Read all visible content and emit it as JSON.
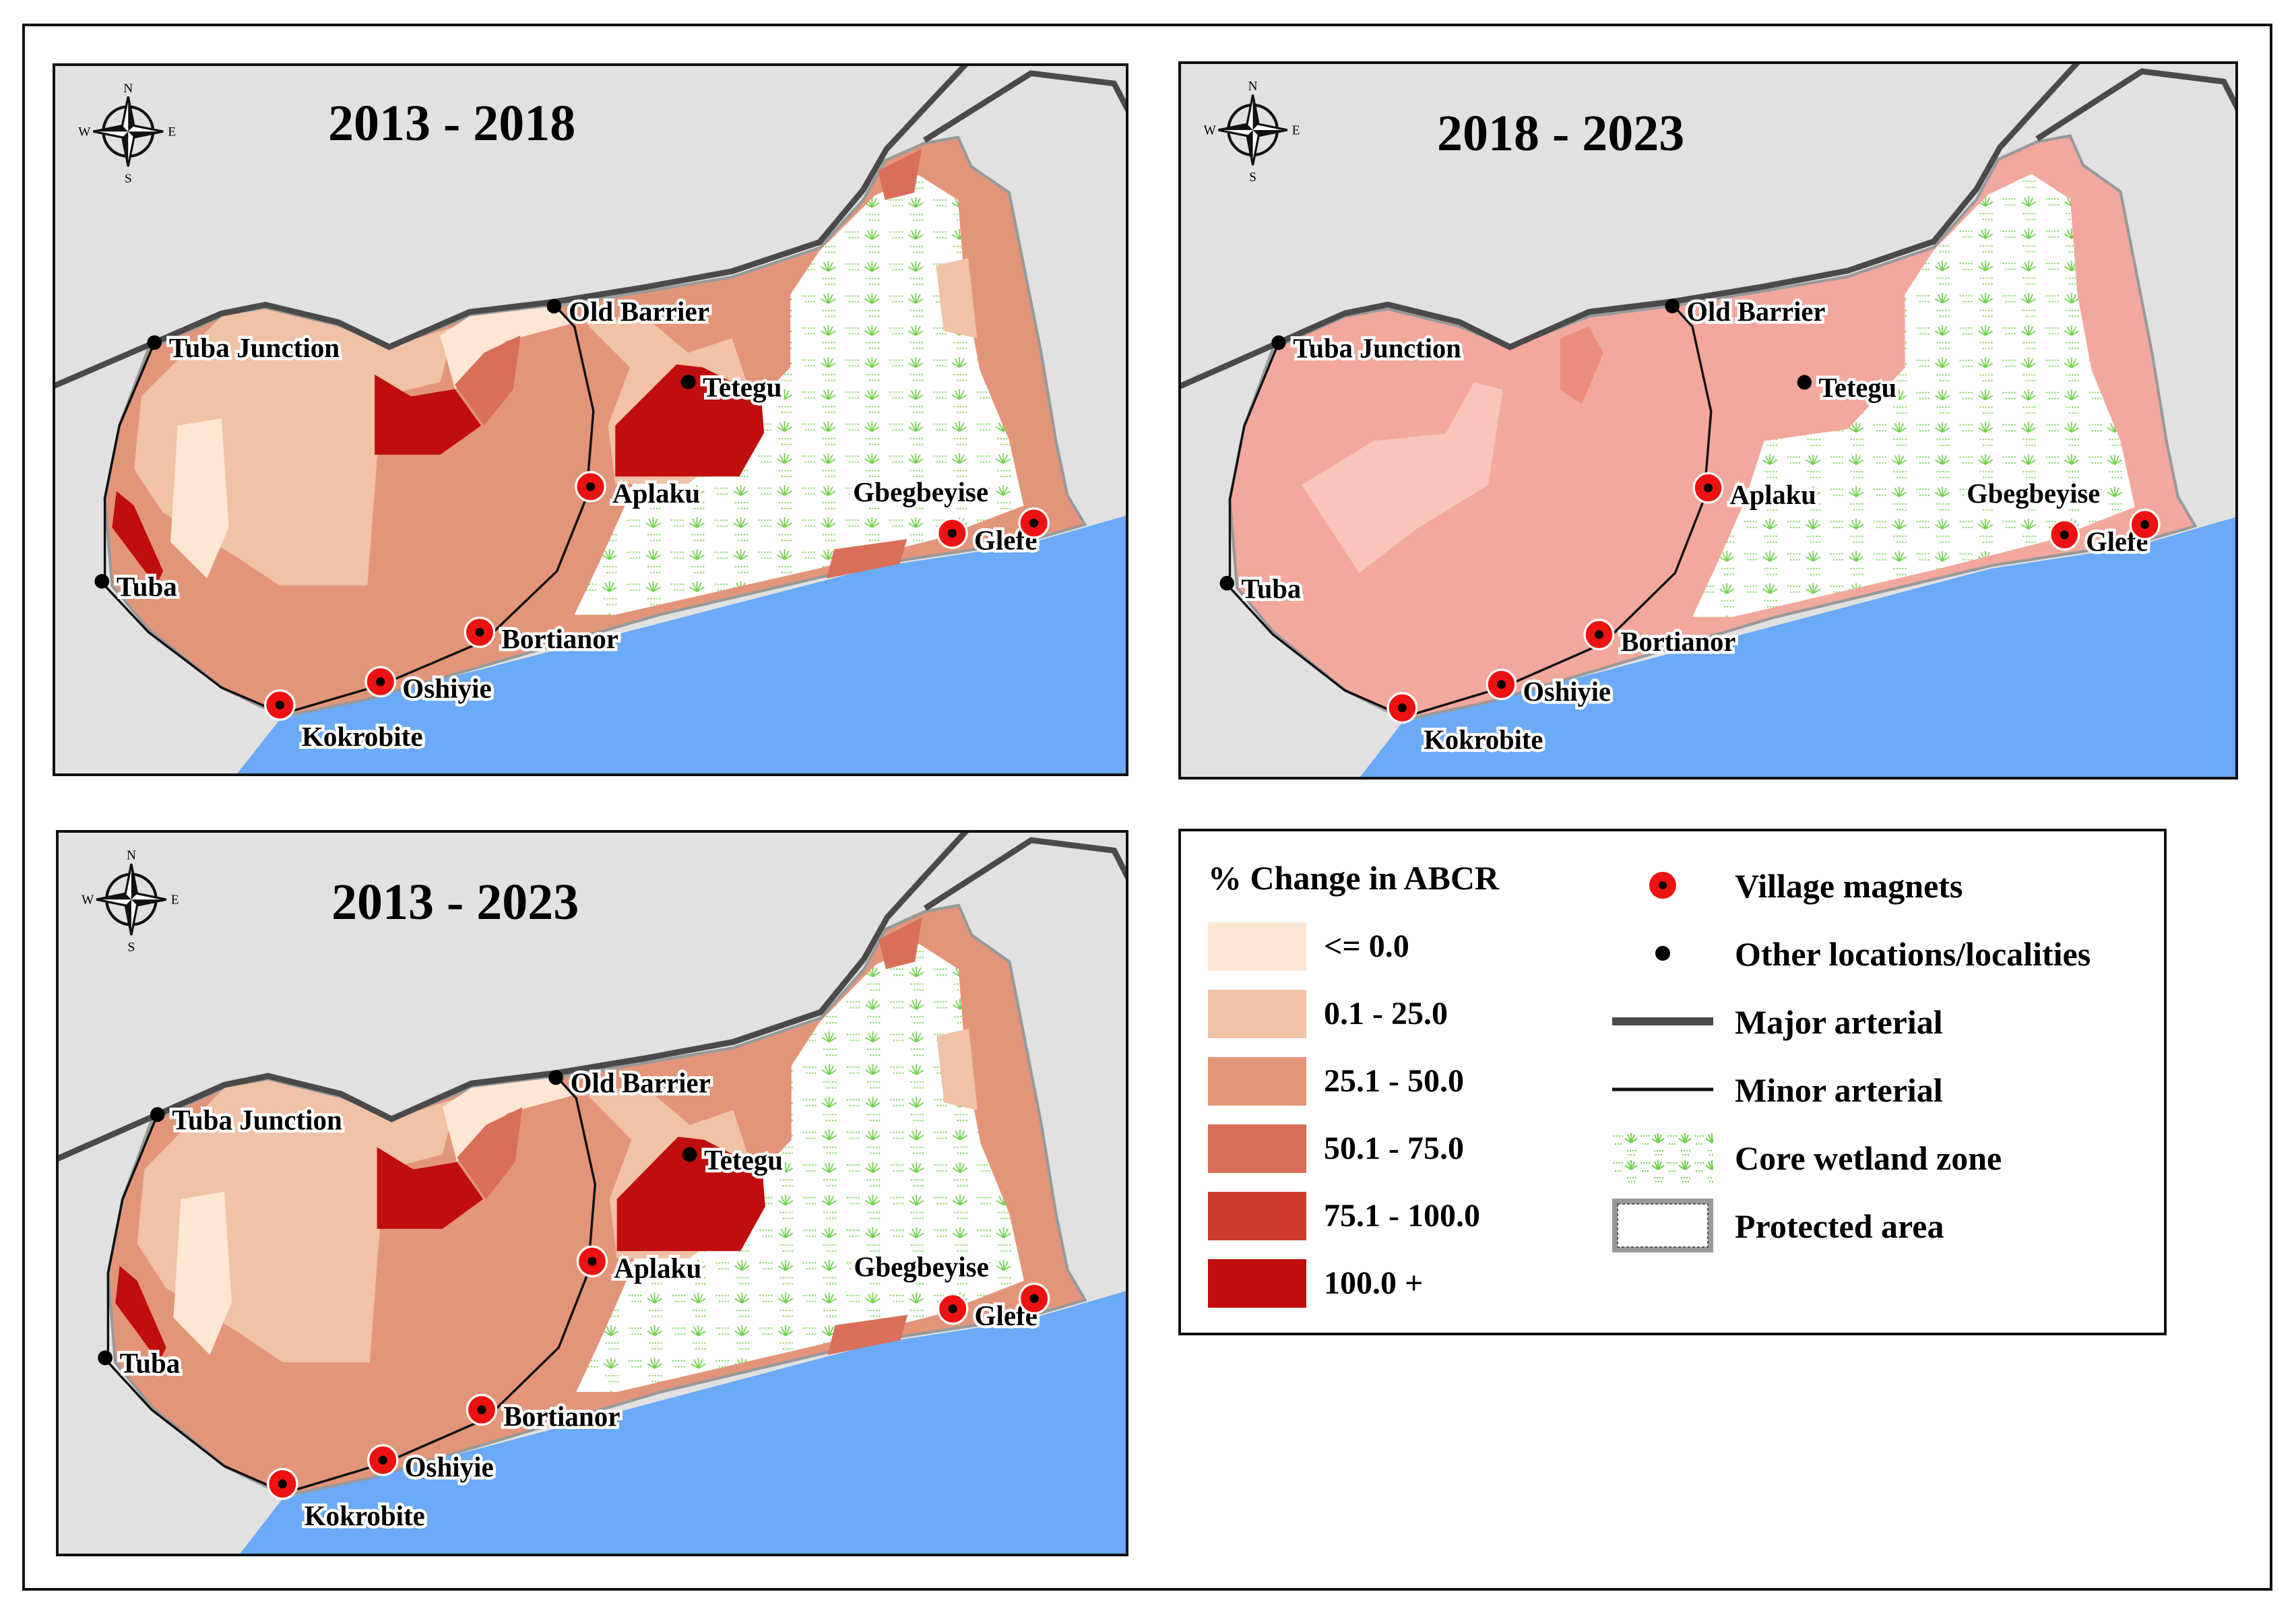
{
  "figure": {
    "compass": {
      "n": "N",
      "s": "S",
      "e": "E",
      "w": "W"
    },
    "panels": [
      {
        "id": "p1",
        "title": "2013 - 2018",
        "variant": "a"
      },
      {
        "id": "p2",
        "title": "2018 - 2023",
        "variant": "b"
      },
      {
        "id": "p3",
        "title": "2013 - 2023",
        "variant": "c"
      }
    ],
    "places": {
      "localities": [
        "Tuba Junction",
        "Old Barrier",
        "Tetegu",
        "Tuba"
      ],
      "village_magnets": [
        "Aplaku",
        "Bortianor",
        "Oshiyie",
        "Kokrobite",
        "Glefe"
      ],
      "unmarked_labels": [
        "Gbegbeyise"
      ]
    },
    "colors": {
      "background_land": "#e1e1e1",
      "sea": "#6aaaf7",
      "wetland_pattern": "#6fd24a",
      "village_magnet": "#ee1111",
      "major_arterial": "#4a4a4a",
      "minor_arterial": "#111111",
      "panel_2018_2023_fill": "#f3a89d"
    }
  },
  "legend": {
    "title": "% Change in ABCR",
    "classes": [
      {
        "label": "<= 0.0",
        "color": "#fde6d3"
      },
      {
        "label": "0.1 - 25.0",
        "color": "#f0c2a6"
      },
      {
        "label": "25.1 - 50.0",
        "color": "#e3957a"
      },
      {
        "label": "50.1 - 75.0",
        "color": "#d96f58"
      },
      {
        "label": "75.1 - 100.0",
        "color": "#cc3a2c"
      },
      {
        "label": "100.0 +",
        "color": "#c00d0d"
      }
    ],
    "symbols": [
      {
        "label": "Village magnets",
        "icon": "village-magnet-icon"
      },
      {
        "label": "Other locations/localities",
        "icon": "locality-dot-icon"
      },
      {
        "label": "Major arterial",
        "icon": "major-arterial-line-icon"
      },
      {
        "label": "Minor arterial",
        "icon": "minor-arterial-line-icon"
      },
      {
        "label": "Core wetland zone",
        "icon": "wetland-pattern-icon"
      },
      {
        "label": "Protected area",
        "icon": "protected-area-box-icon"
      }
    ]
  }
}
